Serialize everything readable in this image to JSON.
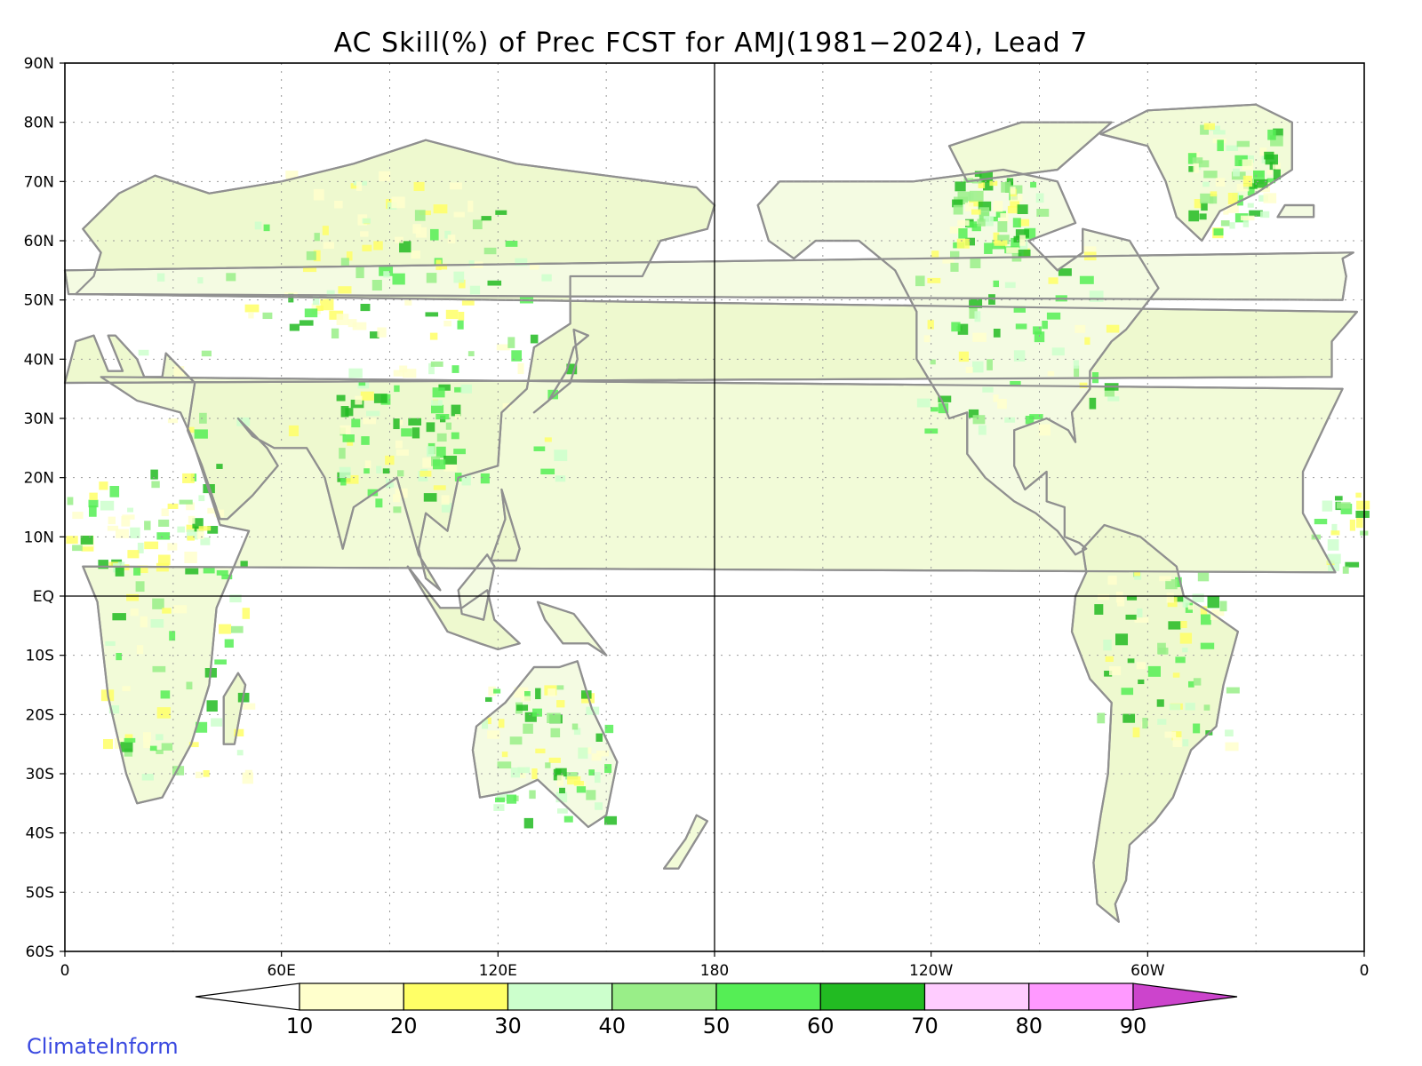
{
  "map": {
    "title": "AC Skill(%) of Prec FCST for AMJ(1981−2024), Lead 7",
    "lat_labels": [
      "90N",
      "80N",
      "70N",
      "60N",
      "50N",
      "40N",
      "30N",
      "20N",
      "10N",
      "EQ",
      "10S",
      "20S",
      "30S",
      "40S",
      "50S",
      "60S"
    ],
    "lon_labels": [
      "0",
      "60E",
      "120E",
      "180",
      "120W",
      "60W",
      "0"
    ],
    "lon_range": [
      0,
      360
    ],
    "lat_range": [
      -60,
      90
    ],
    "reference_lines": [
      "EQ",
      "180"
    ],
    "grid": "dotted"
  },
  "colorbar": {
    "levels": [
      "10",
      "20",
      "30",
      "40",
      "50",
      "60",
      "70",
      "80",
      "90"
    ],
    "colors": [
      "#ffffff",
      "#ffffcc",
      "#ffff66",
      "#ccffcc",
      "#99ee88",
      "#55ee55",
      "#22bb22",
      "#ffccff",
      "#ff99ff",
      "#cc44cc"
    ]
  },
  "credit": "ClimateInform"
}
